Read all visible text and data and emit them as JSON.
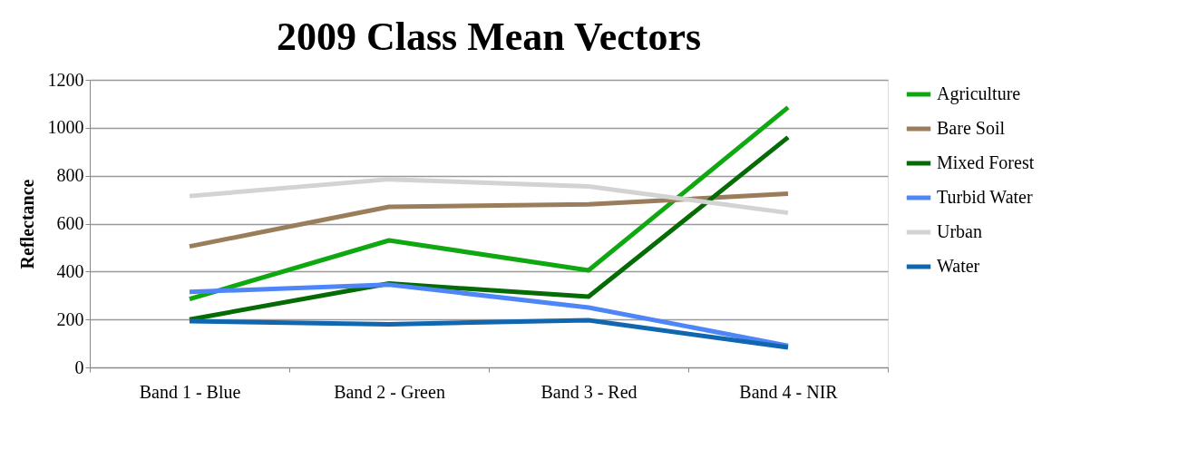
{
  "chart_data": {
    "type": "line",
    "title": "2009 Class Mean Vectors",
    "ylabel": "Reflectance",
    "categories": [
      "Band 1 - Blue",
      "Band 2 - Green",
      "Band 3 - Red",
      "Band 4 - NIR"
    ],
    "series": [
      {
        "name": "Agriculture",
        "color": "#10a810",
        "values": [
          285,
          530,
          405,
          1085
        ]
      },
      {
        "name": "Bare Soil",
        "color": "#9a7d5a",
        "values": [
          505,
          670,
          680,
          725
        ]
      },
      {
        "name": "Mixed Forest",
        "color": "#056b05",
        "values": [
          200,
          350,
          295,
          960
        ]
      },
      {
        "name": "Turbid Water",
        "color": "#4f86f7",
        "values": [
          315,
          345,
          250,
          90
        ]
      },
      {
        "name": "Urban",
        "color": "#d3d3d3",
        "values": [
          715,
          785,
          755,
          645
        ]
      },
      {
        "name": "Water",
        "color": "#1166b0",
        "values": [
          193,
          180,
          197,
          83
        ]
      }
    ],
    "ylim": [
      0,
      1200
    ],
    "yticks": [
      0,
      200,
      400,
      600,
      800,
      1000,
      1200
    ],
    "grid": "y",
    "legend": "right",
    "marker": "none",
    "line_style": "solid"
  }
}
